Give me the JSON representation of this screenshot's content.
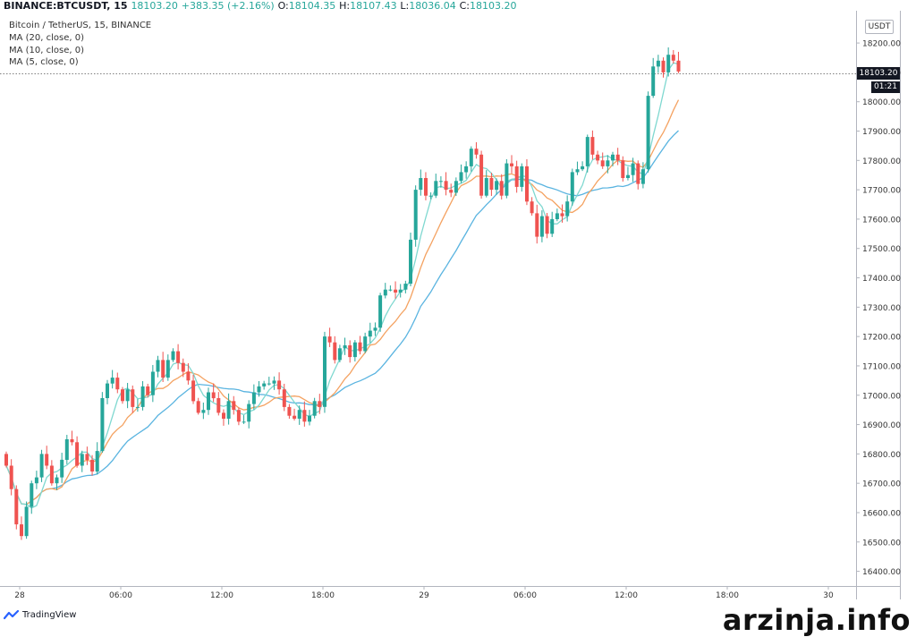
{
  "header": {
    "symbol": "BINANCE:BTCUSDT, 15",
    "last": "18103.20",
    "change": "+383.35 (+2.16%)",
    "o_label": "O:",
    "o_value": "18104.35",
    "h_label": "H:",
    "h_value": "18107.43",
    "l_label": "L:",
    "l_value": "18036.04",
    "c_label": "C:",
    "c_value": "18103.20"
  },
  "legend": {
    "title": "Bitcoin / TetherUS, 15, BINANCE",
    "ma20": "MA (20, close, 0)",
    "ma10": "MA (10, close, 0)",
    "ma5": "MA (5, close, 0)"
  },
  "axis": {
    "unit": "USDT",
    "price_tag": "18103.20",
    "time_tag": "01:21"
  },
  "brand": {
    "name": "TradingView"
  },
  "watermark": "arzinja.info",
  "colors": {
    "up": "#26a69a",
    "down": "#ef5350",
    "ma20": "#5ab4e0",
    "ma10": "#f4a261",
    "ma5": "#7fd8d0"
  },
  "chart_data": {
    "type": "candlestick",
    "interval": "15",
    "ylim": [
      16350,
      18310
    ],
    "y_ticks": [
      "16400.00",
      "16500.00",
      "16600.00",
      "16700.00",
      "16800.00",
      "16900.00",
      "17000.00",
      "17100.00",
      "17200.00",
      "17300.00",
      "17400.00",
      "17500.00",
      "17600.00",
      "17700.00",
      "17800.00",
      "17900.00",
      "18000.00",
      "18100.00",
      "18200.00"
    ],
    "x_ticks": [
      "28",
      "06:00",
      "12:00",
      "18:00",
      "29",
      "06:00",
      "12:00",
      "18:00",
      "30"
    ],
    "grid": false,
    "last_price": 18103.2,
    "closes": [
      16760,
      16680,
      16560,
      16520,
      16620,
      16700,
      16720,
      16800,
      16760,
      16700,
      16720,
      16780,
      16850,
      16840,
      16760,
      16800,
      16780,
      16740,
      16810,
      16990,
      17040,
      17060,
      17020,
      16980,
      17020,
      16960,
      16960,
      17030,
      17000,
      17080,
      17120,
      17060,
      17120,
      17150,
      17110,
      17080,
      17050,
      16980,
      16940,
      16950,
      17010,
      16990,
      16940,
      16920,
      16980,
      16950,
      16910,
      16910,
      16970,
      17010,
      17030,
      17040,
      17040,
      17050,
      17020,
      16960,
      16930,
      16920,
      16950,
      16910,
      16930,
      16980,
      16960,
      17200,
      17180,
      17120,
      17160,
      17170,
      17130,
      17180,
      17150,
      17200,
      17220,
      17230,
      17340,
      17360,
      17360,
      17350,
      17360,
      17380,
      17530,
      17700,
      17740,
      17680,
      17680,
      17730,
      17730,
      17700,
      17690,
      17730,
      17760,
      17780,
      17840,
      17820,
      17680,
      17740,
      17700,
      17730,
      17680,
      17790,
      17780,
      17710,
      17780,
      17660,
      17620,
      17540,
      17610,
      17550,
      17600,
      17620,
      17610,
      17660,
      17760,
      17770,
      17780,
      17880,
      17820,
      17800,
      17780,
      17800,
      17820,
      17800,
      17740,
      17750,
      17790,
      17720,
      17770,
      18020,
      18120,
      18140,
      18100,
      18160,
      18140,
      18103.2
    ]
  }
}
